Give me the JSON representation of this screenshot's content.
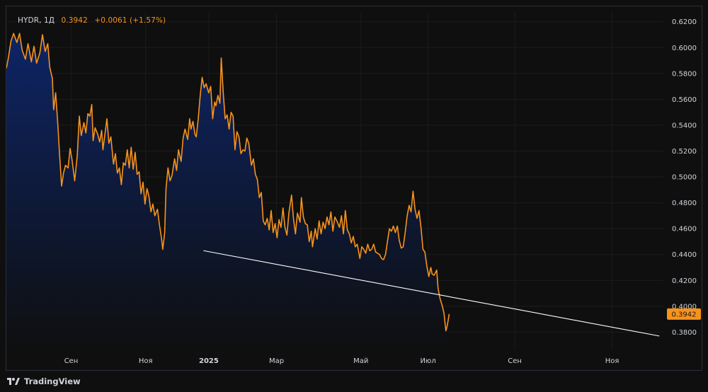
{
  "legend": {
    "symbol": "HYDR",
    "interval": "1Д",
    "price": "0.3942",
    "change": "+0.0061 (+1.57%)"
  },
  "footer": {
    "brand": "TradingView",
    "logo_icon": "tradingview-logo-icon"
  },
  "colors": {
    "line": "#f7931a",
    "area_top": "#0d2566",
    "area_bottom": "#0f0f0f",
    "trendline": "#ffffff",
    "badge": "#f7931a",
    "grid": "#1c1c1c"
  },
  "chart_data": {
    "type": "area",
    "symbol": "HYDR",
    "last_price_label": "0.3942",
    "ylim": [
      0.366,
      0.6275
    ],
    "y_ticks": [
      "0.6200",
      "0.6000",
      "0.5800",
      "0.5600",
      "0.5400",
      "0.5200",
      "0.5000",
      "0.4800",
      "0.4600",
      "0.4400",
      "0.4200",
      "0.4000",
      "0.3800"
    ],
    "x_ticks": [
      {
        "label": "Сен",
        "pos": 0.0985
      },
      {
        "label": "Ноя",
        "pos": 0.2119
      },
      {
        "label": "2025",
        "pos": 0.3081,
        "bold": true
      },
      {
        "label": "Мар",
        "pos": 0.4111
      },
      {
        "label": "Май",
        "pos": 0.5396
      },
      {
        "label": "Июл",
        "pos": 0.6418
      },
      {
        "label": "Сен",
        "pos": 0.7738
      },
      {
        "label": "Ноя",
        "pos": 0.9219
      }
    ],
    "xlim_positions": [
      0.0,
      1.0
    ],
    "series": [
      {
        "values": [
          [
            0.0,
            0.584
          ],
          [
            0.003,
            0.592
          ],
          [
            0.007,
            0.605
          ],
          [
            0.011,
            0.611
          ],
          [
            0.016,
            0.604
          ],
          [
            0.02,
            0.611
          ],
          [
            0.024,
            0.598
          ],
          [
            0.029,
            0.591
          ],
          [
            0.033,
            0.603
          ],
          [
            0.038,
            0.589
          ],
          [
            0.042,
            0.601
          ],
          [
            0.046,
            0.588
          ],
          [
            0.051,
            0.596
          ],
          [
            0.055,
            0.61
          ],
          [
            0.059,
            0.597
          ],
          [
            0.063,
            0.603
          ],
          [
            0.066,
            0.585
          ],
          [
            0.07,
            0.576
          ],
          [
            0.072,
            0.552
          ],
          [
            0.075,
            0.565
          ],
          [
            0.078,
            0.543
          ],
          [
            0.081,
            0.517
          ],
          [
            0.084,
            0.493
          ],
          [
            0.087,
            0.503
          ],
          [
            0.09,
            0.509
          ],
          [
            0.094,
            0.507
          ],
          [
            0.097,
            0.522
          ],
          [
            0.1,
            0.513
          ],
          [
            0.104,
            0.497
          ],
          [
            0.108,
            0.517
          ],
          [
            0.111,
            0.547
          ],
          [
            0.114,
            0.532
          ],
          [
            0.118,
            0.542
          ],
          [
            0.121,
            0.534
          ],
          [
            0.124,
            0.549
          ],
          [
            0.127,
            0.547
          ],
          [
            0.13,
            0.556
          ],
          [
            0.132,
            0.528
          ],
          [
            0.135,
            0.538
          ],
          [
            0.139,
            0.533
          ],
          [
            0.142,
            0.527
          ],
          [
            0.145,
            0.536
          ],
          [
            0.147,
            0.521
          ],
          [
            0.15,
            0.533
          ],
          [
            0.153,
            0.545
          ],
          [
            0.156,
            0.526
          ],
          [
            0.159,
            0.531
          ],
          [
            0.163,
            0.51
          ],
          [
            0.166,
            0.518
          ],
          [
            0.169,
            0.503
          ],
          [
            0.172,
            0.507
          ],
          [
            0.175,
            0.494
          ],
          [
            0.178,
            0.511
          ],
          [
            0.181,
            0.509
          ],
          [
            0.184,
            0.521
          ],
          [
            0.187,
            0.507
          ],
          [
            0.19,
            0.523
          ],
          [
            0.193,
            0.506
          ],
          [
            0.196,
            0.519
          ],
          [
            0.199,
            0.502
          ],
          [
            0.202,
            0.504
          ],
          [
            0.205,
            0.487
          ],
          [
            0.208,
            0.496
          ],
          [
            0.211,
            0.479
          ],
          [
            0.214,
            0.491
          ],
          [
            0.217,
            0.485
          ],
          [
            0.22,
            0.473
          ],
          [
            0.223,
            0.479
          ],
          [
            0.226,
            0.47
          ],
          [
            0.23,
            0.475
          ],
          [
            0.233,
            0.463
          ],
          [
            0.236,
            0.453
          ],
          [
            0.238,
            0.444
          ],
          [
            0.241,
            0.457
          ],
          [
            0.243,
            0.491
          ],
          [
            0.246,
            0.507
          ],
          [
            0.249,
            0.497
          ],
          [
            0.252,
            0.501
          ],
          [
            0.256,
            0.514
          ],
          [
            0.259,
            0.505
          ],
          [
            0.262,
            0.521
          ],
          [
            0.266,
            0.512
          ],
          [
            0.269,
            0.53
          ],
          [
            0.272,
            0.537
          ],
          [
            0.276,
            0.529
          ],
          [
            0.279,
            0.545
          ],
          [
            0.281,
            0.537
          ],
          [
            0.284,
            0.543
          ],
          [
            0.287,
            0.533
          ],
          [
            0.289,
            0.531
          ],
          [
            0.292,
            0.545
          ],
          [
            0.295,
            0.563
          ],
          [
            0.298,
            0.577
          ],
          [
            0.301,
            0.569
          ],
          [
            0.304,
            0.572
          ],
          [
            0.308,
            0.565
          ],
          [
            0.311,
            0.57
          ],
          [
            0.314,
            0.545
          ],
          [
            0.317,
            0.558
          ],
          [
            0.319,
            0.555
          ],
          [
            0.322,
            0.563
          ],
          [
            0.325,
            0.557
          ],
          [
            0.327,
            0.592
          ],
          [
            0.33,
            0.566
          ],
          [
            0.333,
            0.545
          ],
          [
            0.336,
            0.548
          ],
          [
            0.339,
            0.537
          ],
          [
            0.342,
            0.55
          ],
          [
            0.345,
            0.547
          ],
          [
            0.348,
            0.521
          ],
          [
            0.351,
            0.535
          ],
          [
            0.354,
            0.531
          ],
          [
            0.357,
            0.518
          ],
          [
            0.36,
            0.521
          ],
          [
            0.363,
            0.52
          ],
          [
            0.366,
            0.53
          ],
          [
            0.369,
            0.526
          ],
          [
            0.373,
            0.509
          ],
          [
            0.376,
            0.514
          ],
          [
            0.379,
            0.502
          ],
          [
            0.382,
            0.498
          ],
          [
            0.385,
            0.484
          ],
          [
            0.388,
            0.488
          ],
          [
            0.391,
            0.466
          ],
          [
            0.394,
            0.463
          ],
          [
            0.397,
            0.468
          ],
          [
            0.4,
            0.459
          ],
          [
            0.403,
            0.474
          ],
          [
            0.406,
            0.457
          ],
          [
            0.409,
            0.464
          ],
          [
            0.412,
            0.453
          ],
          [
            0.415,
            0.467
          ],
          [
            0.418,
            0.461
          ],
          [
            0.421,
            0.476
          ],
          [
            0.424,
            0.461
          ],
          [
            0.427,
            0.455
          ],
          [
            0.43,
            0.472
          ],
          [
            0.434,
            0.486
          ],
          [
            0.437,
            0.468
          ],
          [
            0.44,
            0.456
          ],
          [
            0.443,
            0.472
          ],
          [
            0.447,
            0.465
          ],
          [
            0.449,
            0.484
          ],
          [
            0.452,
            0.469
          ],
          [
            0.455,
            0.464
          ],
          [
            0.458,
            0.463
          ],
          [
            0.461,
            0.45
          ],
          [
            0.464,
            0.458
          ],
          [
            0.466,
            0.446
          ],
          [
            0.47,
            0.46
          ],
          [
            0.473,
            0.452
          ],
          [
            0.476,
            0.466
          ],
          [
            0.479,
            0.456
          ],
          [
            0.482,
            0.465
          ],
          [
            0.485,
            0.46
          ],
          [
            0.488,
            0.469
          ],
          [
            0.491,
            0.463
          ],
          [
            0.494,
            0.473
          ],
          [
            0.497,
            0.458
          ],
          [
            0.5,
            0.469
          ],
          [
            0.503,
            0.466
          ],
          [
            0.507,
            0.461
          ],
          [
            0.51,
            0.47
          ],
          [
            0.513,
            0.456
          ],
          [
            0.516,
            0.474
          ],
          [
            0.519,
            0.459
          ],
          [
            0.522,
            0.456
          ],
          [
            0.525,
            0.449
          ],
          [
            0.528,
            0.454
          ],
          [
            0.531,
            0.446
          ],
          [
            0.534,
            0.448
          ],
          [
            0.538,
            0.437
          ],
          [
            0.541,
            0.446
          ],
          [
            0.544,
            0.444
          ],
          [
            0.547,
            0.441
          ],
          [
            0.55,
            0.448
          ],
          [
            0.553,
            0.443
          ],
          [
            0.556,
            0.444
          ],
          [
            0.559,
            0.448
          ],
          [
            0.562,
            0.442
          ],
          [
            0.565,
            0.441
          ],
          [
            0.568,
            0.44
          ],
          [
            0.571,
            0.437
          ],
          [
            0.574,
            0.436
          ],
          [
            0.577,
            0.44
          ],
          [
            0.58,
            0.45
          ],
          [
            0.583,
            0.46
          ],
          [
            0.586,
            0.458
          ],
          [
            0.589,
            0.462
          ],
          [
            0.592,
            0.457
          ],
          [
            0.595,
            0.462
          ],
          [
            0.598,
            0.451
          ],
          [
            0.601,
            0.445
          ],
          [
            0.604,
            0.446
          ],
          [
            0.607,
            0.457
          ],
          [
            0.61,
            0.47
          ],
          [
            0.613,
            0.478
          ],
          [
            0.616,
            0.473
          ],
          [
            0.619,
            0.489
          ],
          [
            0.622,
            0.475
          ],
          [
            0.625,
            0.468
          ],
          [
            0.628,
            0.474
          ],
          [
            0.631,
            0.461
          ],
          [
            0.634,
            0.444
          ],
          [
            0.637,
            0.442
          ],
          [
            0.64,
            0.431
          ],
          [
            0.643,
            0.423
          ],
          [
            0.646,
            0.43
          ],
          [
            0.648,
            0.425
          ],
          [
            0.651,
            0.424
          ],
          [
            0.655,
            0.428
          ],
          [
            0.657,
            0.414
          ],
          [
            0.66,
            0.406
          ],
          [
            0.663,
            0.401
          ],
          [
            0.666,
            0.395
          ],
          [
            0.669,
            0.381
          ],
          [
            0.671,
            0.385
          ],
          [
            0.674,
            0.394
          ]
        ]
      }
    ],
    "trendline": {
      "from": [
        0.3,
        0.443
      ],
      "to": [
        0.9938,
        0.377
      ]
    }
  }
}
